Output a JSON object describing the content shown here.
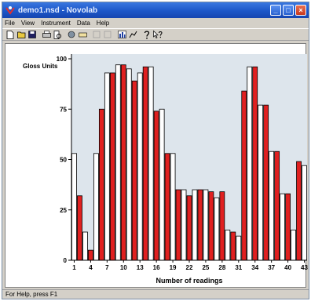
{
  "window": {
    "title": "demo1.nsd - Novolab",
    "controls": {
      "minimize": "_",
      "maximize": "□",
      "close": "×"
    }
  },
  "menu": [
    "File",
    "View",
    "Instrument",
    "Data",
    "Help"
  ],
  "toolbar": [
    "new-file-icon",
    "open-folder-icon",
    "save-disk-icon",
    "separator",
    "print-icon",
    "print-preview-icon",
    "separator",
    "instrument-icon",
    "ruler-icon",
    "separator",
    "disabled-icon-a",
    "disabled-icon-b",
    "separator",
    "chart-icon",
    "statistics-icon",
    "separator",
    "help-icon",
    "context-help-icon"
  ],
  "status": {
    "text": "For Help, press F1"
  },
  "colors": {
    "plot_background": "#dde5ec",
    "series_white": "#ffffff",
    "series_red": "#e02020",
    "bar_border": "#000000"
  },
  "chart_data": {
    "type": "bar",
    "ylabel": "Gloss Units",
    "xlabel": "Number of readings",
    "ylim": [
      0,
      100
    ],
    "yticks": [
      0,
      25,
      50,
      75,
      100
    ],
    "xtick_labels": [
      "1",
      "4",
      "7",
      "10",
      "13",
      "16",
      "19",
      "22",
      "25",
      "28",
      "31",
      "34",
      "37",
      "40",
      "43"
    ],
    "xtick_readings": [
      1,
      4,
      7,
      10,
      13,
      16,
      19,
      22,
      25,
      28,
      31,
      34,
      37,
      40,
      43
    ],
    "grid": false,
    "series": [
      {
        "values": [
          53,
          32,
          14,
          5,
          53,
          75,
          93,
          93,
          97,
          97,
          95,
          89,
          93,
          96,
          96,
          74,
          75,
          53,
          53,
          35,
          35,
          32,
          35,
          35,
          35,
          34,
          31,
          34,
          15,
          14,
          12,
          84,
          96,
          96,
          77,
          77,
          54,
          54,
          33,
          33,
          15,
          49,
          47
        ]
      }
    ]
  }
}
